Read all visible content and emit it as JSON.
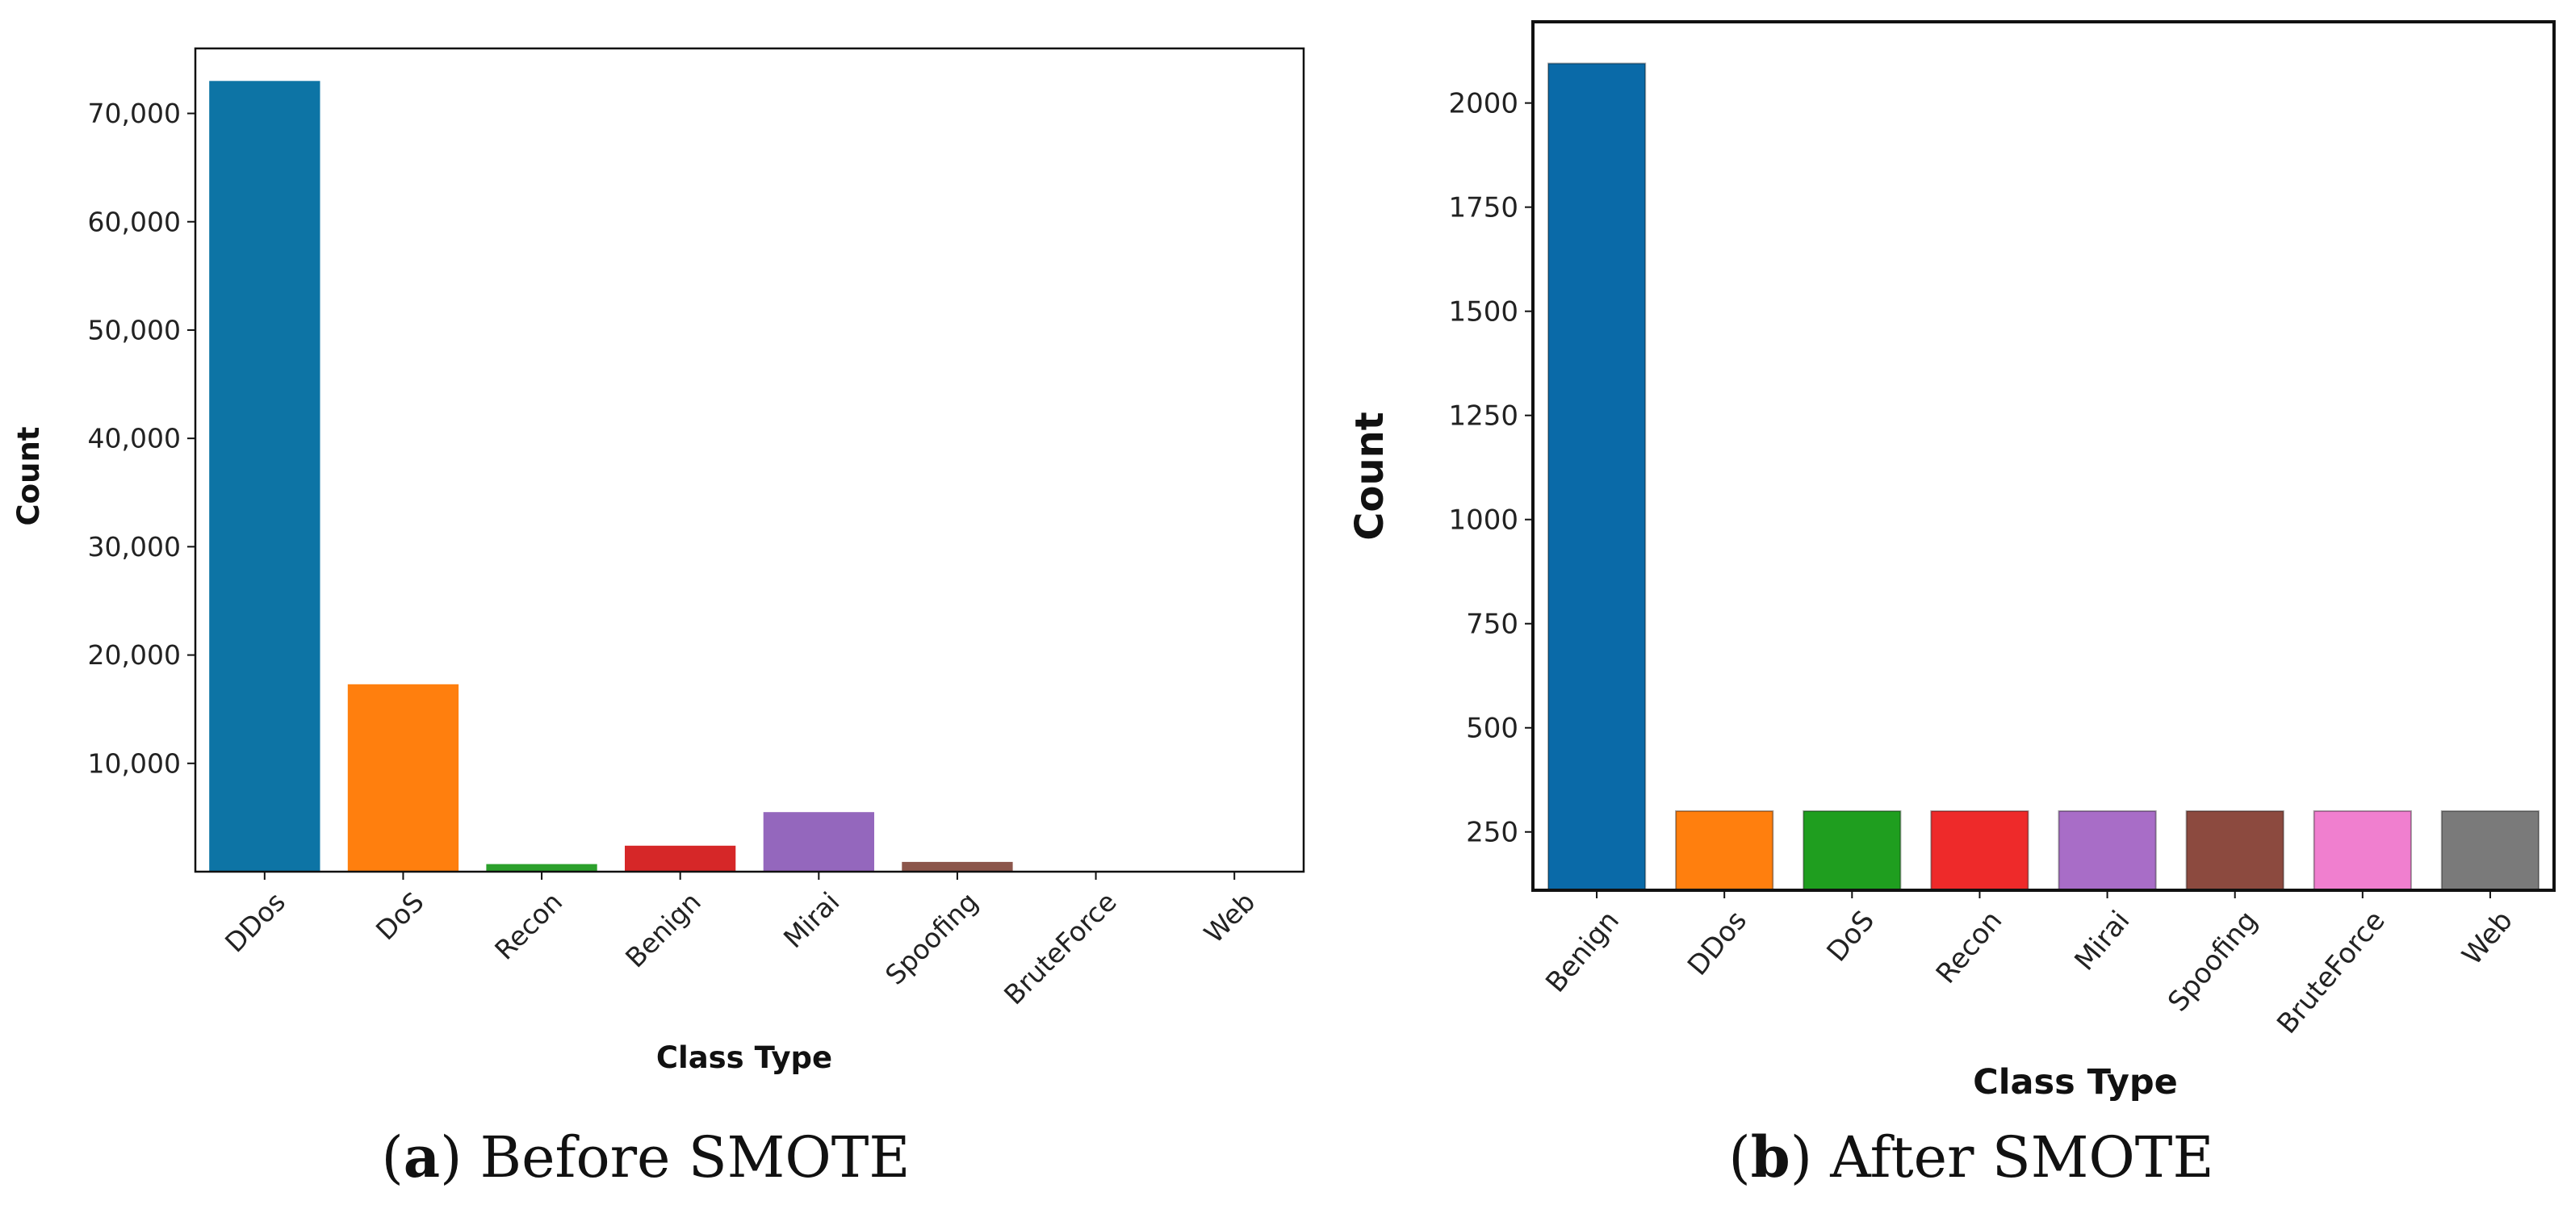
{
  "chart_data": [
    {
      "id": "a",
      "type": "bar",
      "title": "",
      "xlabel": "Class Type",
      "ylabel": "Count",
      "categories": [
        "DDos",
        "DoS",
        "Recon",
        "Benign",
        "Mirai",
        "Spoofing",
        "BruteForce",
        "Web"
      ],
      "values": [
        73000,
        17300,
        700,
        2400,
        5500,
        900,
        0,
        0
      ],
      "colors": [
        "#0d74a5",
        "#ff7f0e",
        "#2ca02c",
        "#d62728",
        "#9467bd",
        "#8c564b",
        "#e377c2",
        "#7f7f7f"
      ],
      "ylim": [
        0,
        76000
      ],
      "yticks": [
        10000,
        20000,
        30000,
        40000,
        50000,
        60000,
        70000
      ],
      "ytick_labels": [
        "10,000",
        "20,000",
        "30,000",
        "40,000",
        "50,000",
        "60,000",
        "70,000"
      ],
      "grid": false,
      "caption_letter": "a",
      "caption_text": "Before SMOTE"
    },
    {
      "id": "b",
      "type": "bar",
      "title": "",
      "xlabel": "Class Type",
      "ylabel": "Count",
      "categories": [
        "Benign",
        "DDos",
        "DoS",
        "Recon",
        "Mirai",
        "Spoofing",
        "BruteForce",
        "Web"
      ],
      "values": [
        2095,
        300,
        300,
        300,
        300,
        300,
        300,
        300
      ],
      "colors": [
        "#0a6aa8",
        "#ff7f0e",
        "#1f9e1f",
        "#ee2a2a",
        "#a86dc7",
        "#8c4a3f",
        "#f07fcf",
        "#7a7a7a"
      ],
      "ylim": [
        110,
        2195
      ],
      "yticks": [
        250,
        500,
        750,
        1000,
        1250,
        1500,
        1750,
        2000
      ],
      "ytick_labels": [
        "250",
        "500",
        "750",
        "1000",
        "1250",
        "1500",
        "1750",
        "2000"
      ],
      "grid": false,
      "caption_letter": "b",
      "caption_text": "After SMOTE"
    }
  ]
}
